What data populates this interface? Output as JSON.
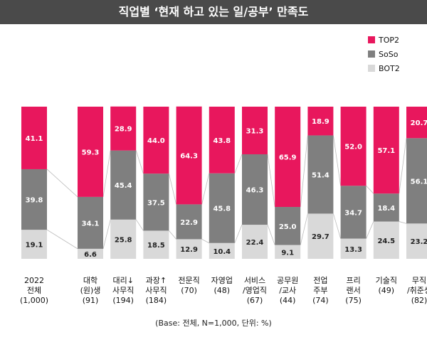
{
  "title": "직업별 ‘현재 하고 있는 일/공부’ 만족도",
  "footnote": "(Base: 전체, N=1,000, 단위: %)",
  "colors": {
    "top2": "#e8175d",
    "soso": "#7f7f7f",
    "bot2": "#d9d9d9"
  },
  "chart_data": {
    "type": "bar",
    "stacked": true,
    "percent_stacked": true,
    "categories": [
      [
        "2022",
        "전체",
        "(1,000)"
      ],
      [
        "대학",
        "(원)생",
        "(91)"
      ],
      [
        "대리↓",
        "사무직",
        "(194)"
      ],
      [
        "과장↑",
        "사무직",
        "(184)"
      ],
      [
        "전문직",
        "(70)"
      ],
      [
        "자영업",
        "(48)"
      ],
      [
        "서비스",
        "/영업직",
        "(67)"
      ],
      [
        "공무원",
        "/교사",
        "(44)"
      ],
      [
        "전업",
        "주부",
        "(74)"
      ],
      [
        "프리",
        "랜서",
        "(75)"
      ],
      [
        "기술직",
        "(49)"
      ],
      [
        "무직",
        "/취준생",
        "(82)"
      ]
    ],
    "series": [
      {
        "name": "BOT2",
        "color": "#d9d9d9",
        "values": [
          19.1,
          6.6,
          25.8,
          18.5,
          12.9,
          10.4,
          22.4,
          9.1,
          29.7,
          13.3,
          24.5,
          23.2
        ]
      },
      {
        "name": "SoSo",
        "color": "#7f7f7f",
        "values": [
          39.8,
          34.1,
          45.4,
          37.5,
          22.9,
          45.8,
          46.3,
          25.0,
          51.4,
          34.7,
          18.4,
          56.1
        ]
      },
      {
        "name": "TOP2",
        "color": "#e8175d",
        "values": [
          41.1,
          59.3,
          28.9,
          44.0,
          64.3,
          43.8,
          31.3,
          65.9,
          18.9,
          52.0,
          57.1,
          20.7
        ]
      }
    ],
    "legend": [
      "TOP2",
      "SoSo",
      "BOT2"
    ],
    "legend_position": "top-right",
    "label_format": "1-decimal",
    "ylim": [
      0,
      100
    ],
    "connector_lines": true,
    "gap_after_first_category": true
  }
}
